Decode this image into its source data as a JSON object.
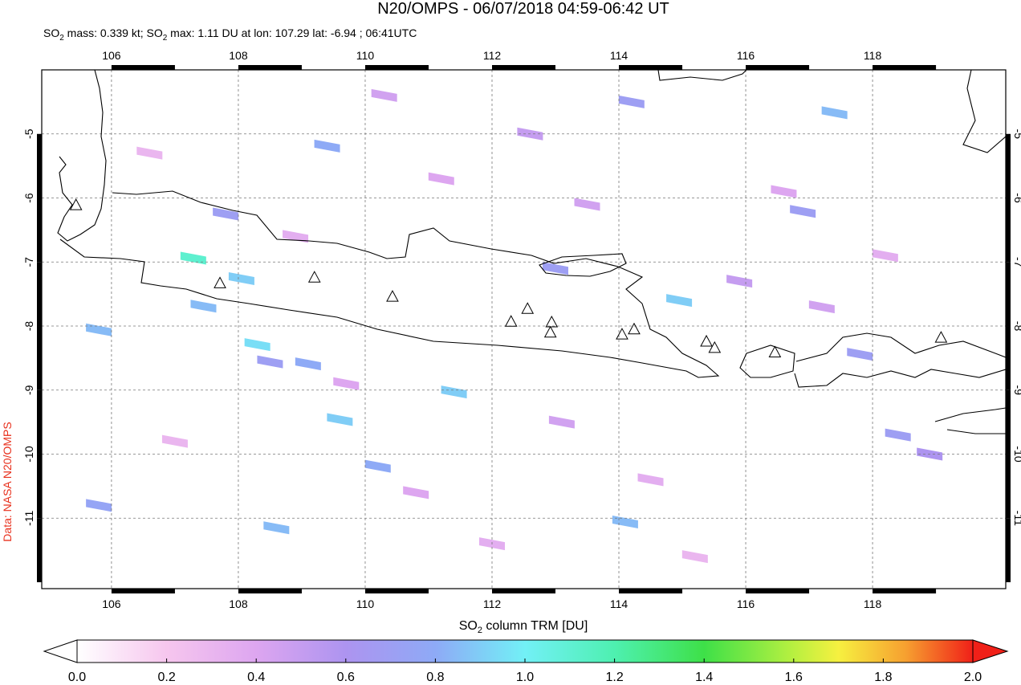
{
  "chart_data": {
    "type": "map",
    "title": "N20/OMPS - 06/07/2018 04:59-06:42 UT",
    "subtitle": [
      "SO",
      "2",
      " mass: 0.339 kt; SO",
      "2",
      " max: 1.11 DU at lon: 107.29 lat: -6.94 ; 06:41UTC"
    ],
    "credit": "Data: NASA N20/OMPS",
    "xlim": [
      104.9,
      120.1
    ],
    "ylim": [
      -12.1,
      -4.0
    ],
    "xticks": [
      106,
      108,
      110,
      112,
      114,
      116,
      118
    ],
    "yticks": [
      -5,
      -6,
      -7,
      -8,
      -9,
      -10,
      -11
    ],
    "grid": true,
    "so2_pixels": {
      "lon": [
        107.29,
        108.05,
        107.8,
        109.4,
        108.3,
        108.5,
        109.1,
        109.6,
        111.4,
        110.2,
        114.1,
        114.2,
        114.95,
        117.4,
        116.9,
        117.8,
        118.4,
        105.8,
        107.45,
        108.6,
        105.8,
        113.0,
        118.9,
        110.3,
        112.6,
        111.2,
        113.5,
        115.9,
        117.2,
        106.6,
        108.9,
        110.8,
        113.1,
        114.5,
        116.6,
        118.2,
        107.0,
        109.7,
        112.0,
        115.2
      ],
      "lat": [
        -6.94,
        -7.26,
        -6.25,
        -5.19,
        -8.29,
        -8.56,
        -8.59,
        -9.46,
        -9.03,
        -10.19,
        -11.06,
        -4.5,
        -7.6,
        -4.67,
        -6.21,
        -8.44,
        -9.7,
        -8.06,
        -7.69,
        -11.15,
        -10.8,
        -7.1,
        -10.0,
        -4.4,
        -5.0,
        -5.7,
        -6.1,
        -7.3,
        -7.7,
        -5.3,
        -6.6,
        -10.6,
        -9.5,
        -10.4,
        -5.9,
        -6.9,
        -9.8,
        -8.9,
        -11.4,
        -11.6
      ],
      "values": [
        1.11,
        0.9,
        0.7,
        0.8,
        0.95,
        0.7,
        0.8,
        0.9,
        0.9,
        0.8,
        0.85,
        0.7,
        0.9,
        0.85,
        0.7,
        0.7,
        0.7,
        0.85,
        0.85,
        0.85,
        0.75,
        0.7,
        0.6,
        0.45,
        0.5,
        0.4,
        0.45,
        0.5,
        0.45,
        0.3,
        0.35,
        0.4,
        0.45,
        0.35,
        0.4,
        0.35,
        0.3,
        0.4,
        0.35,
        0.3
      ]
    },
    "volcanoes": {
      "lon": [
        105.44,
        107.71,
        109.2,
        110.43,
        112.3,
        112.56,
        112.94,
        112.92,
        114.05,
        114.24,
        115.38,
        115.51,
        116.46,
        119.08
      ],
      "lat": [
        -6.12,
        -7.34,
        -7.25,
        -7.55,
        -7.94,
        -7.74,
        -7.95,
        -8.11,
        -8.14,
        -8.06,
        -8.25,
        -8.35,
        -8.42,
        -8.19
      ]
    },
    "colorbar": {
      "label": [
        "SO",
        "2",
        " column TRM [DU]"
      ],
      "lim": [
        0,
        2
      ],
      "ticks": [
        {
          "value": 0,
          "label": "0.0"
        },
        0.2,
        0.4,
        0.6,
        0.8,
        {
          "value": 1,
          "label": "1.0"
        },
        1.2,
        1.4,
        1.6,
        1.8,
        {
          "value": 2,
          "label": "2.0"
        }
      ],
      "colormap": [
        [
          0,
          "#ffffff"
        ],
        [
          0.2,
          "#f6c6ee"
        ],
        [
          0.4,
          "#dda6f0"
        ],
        [
          0.6,
          "#ad94f0"
        ],
        [
          0.8,
          "#8eaaf6"
        ],
        [
          1,
          "#72f0f6"
        ],
        [
          1.2,
          "#4ef0b0"
        ],
        [
          1.4,
          "#3ee048"
        ],
        [
          1.6,
          "#b8f040"
        ],
        [
          1.7,
          "#f6f040"
        ],
        [
          1.85,
          "#f6a030"
        ],
        [
          2,
          "#f02018"
        ]
      ]
    }
  }
}
